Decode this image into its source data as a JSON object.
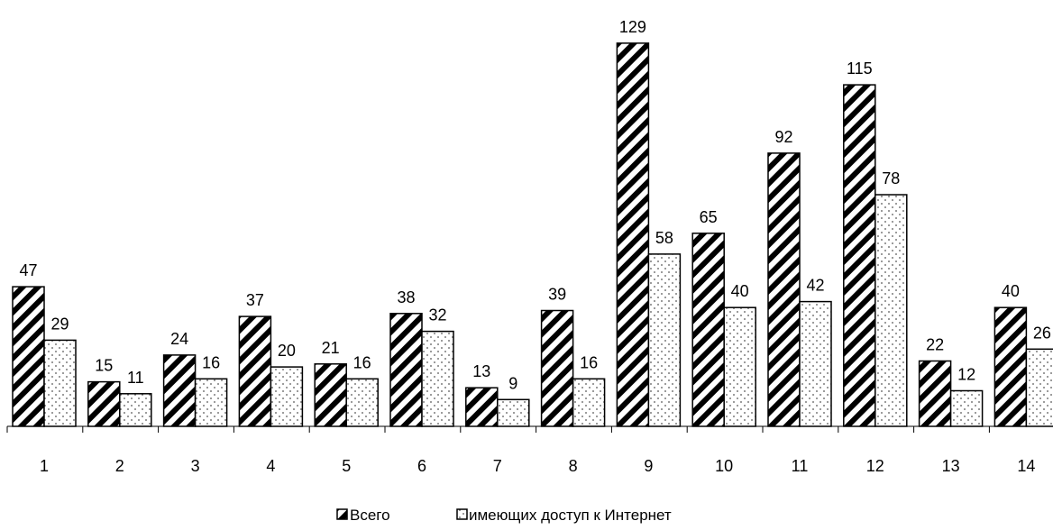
{
  "chart_data": {
    "type": "bar",
    "categories": [
      "1",
      "2",
      "3",
      "4",
      "5",
      "6",
      "7",
      "8",
      "9",
      "10",
      "11",
      "12",
      "13",
      "14"
    ],
    "series": [
      {
        "name": "Всего",
        "values": [
          47,
          15,
          24,
          37,
          21,
          38,
          13,
          39,
          129,
          65,
          92,
          115,
          22,
          40
        ],
        "pattern": "diagonal-hatch"
      },
      {
        "name": "имеющих доступ к Интернет",
        "values": [
          29,
          11,
          16,
          20,
          16,
          32,
          9,
          16,
          58,
          40,
          42,
          78,
          12,
          26
        ],
        "pattern": "dotted"
      }
    ],
    "title": "",
    "xlabel": "",
    "ylabel": "",
    "ylim": [
      0,
      130
    ],
    "grid": false,
    "legend_position": "bottom",
    "colors": {
      "bar_stroke": "#000000",
      "background": "#ffffff"
    }
  }
}
